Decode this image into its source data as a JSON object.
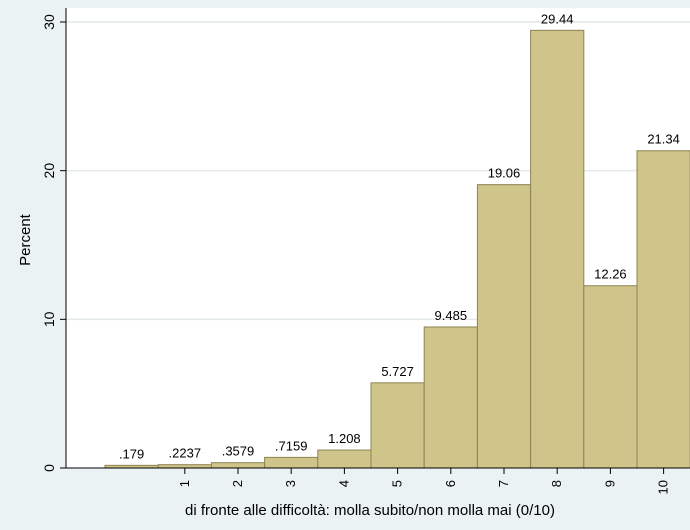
{
  "chart_data": {
    "type": "bar",
    "categories": [
      "",
      "1",
      "2",
      "3",
      "4",
      "5",
      "6",
      "7",
      "8",
      "9",
      "10"
    ],
    "values": [
      0.179,
      0.2237,
      0.3579,
      0.7159,
      1.208,
      5.727,
      9.485,
      19.06,
      29.44,
      12.26,
      21.34
    ],
    "value_labels": [
      ".179",
      ".2237",
      ".3579",
      ".7159",
      "1.208",
      "5.727",
      "9.485",
      "19.06",
      "29.44",
      "12.26",
      "21.34"
    ],
    "x_ticks": [
      "1",
      "2",
      "3",
      "4",
      "5",
      "6",
      "7",
      "8",
      "9",
      "10"
    ],
    "y_ticks": [
      "0",
      "10",
      "20",
      "30"
    ],
    "xlabel": "di fronte alle difficoltà: molla subito/non molla mai (0/10)",
    "ylabel": "Percent",
    "ylim": [
      0,
      30.5
    ],
    "grid": true,
    "legend": "none"
  },
  "colors": {
    "background": "#eaf2f3",
    "plot_area": "#ffffff",
    "bar_fill": "#cfc48a",
    "bar_stroke": "#8c8452",
    "grid": "#e1e9ea",
    "axis": "#000000"
  }
}
